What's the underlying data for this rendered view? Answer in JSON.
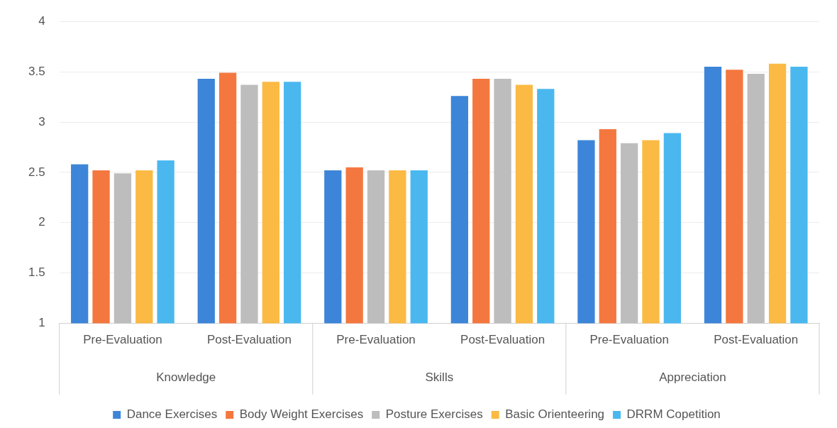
{
  "chart_data": {
    "type": "bar",
    "categories": [
      "Pre-Evaluation",
      "Post-Evaluation",
      "Pre-Evaluation",
      "Post-Evaluation",
      "Pre-Evaluation",
      "Post-Evaluation"
    ],
    "annotations": [
      "Knowledge",
      "Skills",
      "Appreciation"
    ],
    "series": [
      {
        "name": "Dance Exercises",
        "color": "#3d85d8",
        "values": [
          2.58,
          3.43,
          2.52,
          3.26,
          2.82,
          3.55
        ]
      },
      {
        "name": "Body Weight Exercises",
        "color": "#f4773f",
        "values": [
          2.52,
          3.49,
          2.55,
          3.43,
          2.93,
          3.52
        ]
      },
      {
        "name": "Posture Exercises",
        "color": "#bdbdbd",
        "values": [
          2.49,
          3.37,
          2.52,
          3.43,
          2.79,
          3.48
        ]
      },
      {
        "name": "Basic Orienteering",
        "color": "#fbba44",
        "values": [
          2.52,
          3.4,
          2.52,
          3.37,
          2.82,
          3.58
        ]
      },
      {
        "name": "DRRM Copetition",
        "color": "#4ab8ef",
        "values": [
          2.62,
          3.4,
          2.52,
          3.33,
          2.89,
          3.55
        ]
      }
    ],
    "ylim": [
      1,
      4
    ],
    "yticks": [
      1,
      1.5,
      2,
      2.5,
      3,
      3.5,
      4
    ],
    "grid": "y",
    "legend": "bottom"
  }
}
